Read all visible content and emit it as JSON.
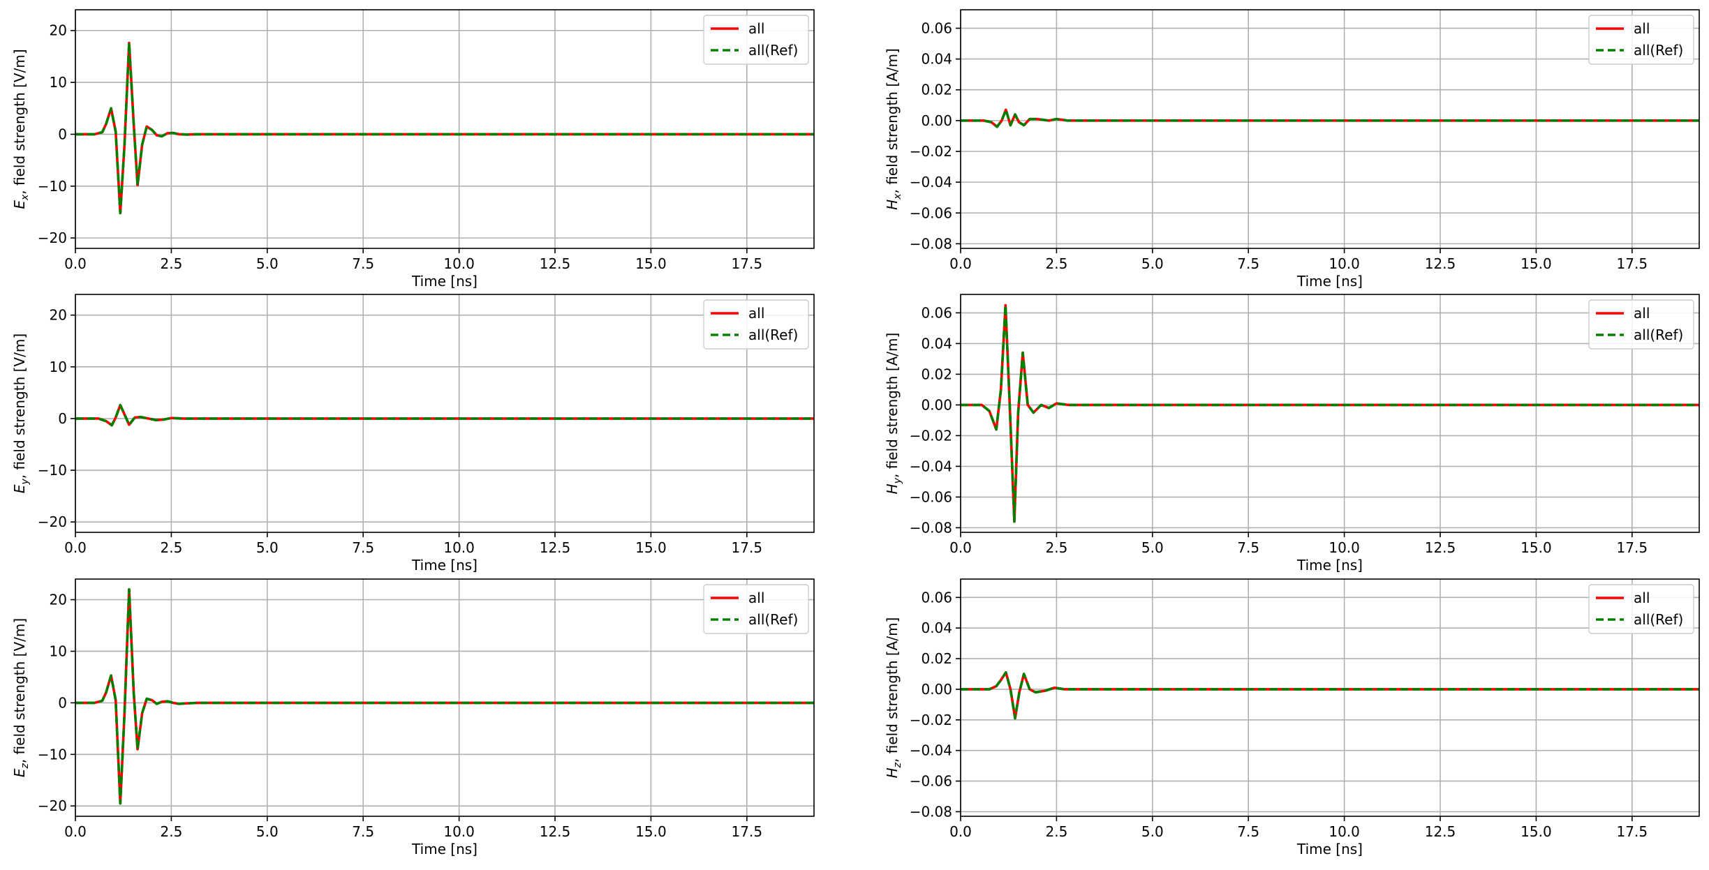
{
  "figure": {
    "layout": "3 rows x 2 columns",
    "grid": true,
    "legend_position": "top-right",
    "colors": {
      "sim": "#ff0000",
      "ref": "#007f00",
      "grid": "#b0b0b0",
      "axes": "#000000"
    }
  },
  "chart_data": [
    {
      "type": "line",
      "id": "ex",
      "title": "",
      "ylabel_main": "E",
      "ylabel_sub": "x",
      "ylabel_rest": ", field strength [V/m]",
      "xlabel": "Time [ns]",
      "xlim": [
        0,
        19.25
      ],
      "ylim": [
        -22,
        24
      ],
      "xticks": [
        0,
        2.5,
        5,
        7.5,
        10,
        12.5,
        15,
        17.5
      ],
      "xtick_labels": [
        "0.0",
        "2.5",
        "5.0",
        "7.5",
        "10.0",
        "12.5",
        "15.0",
        "17.5"
      ],
      "yticks": [
        -20,
        -10,
        0,
        10,
        20
      ],
      "ytick_labels": [
        "−20",
        "−10",
        "0",
        "10",
        "20"
      ],
      "x": [
        0,
        0.5,
        0.7,
        0.8,
        0.93,
        1.05,
        1.17,
        1.28,
        1.4,
        1.52,
        1.62,
        1.74,
        1.86,
        2.0,
        2.12,
        2.25,
        2.4,
        2.55,
        2.7,
        2.9,
        3.2,
        19.25
      ],
      "series": [
        {
          "name": "all",
          "values": [
            0,
            0,
            0.4,
            2.0,
            5.0,
            0.5,
            -15.2,
            -2.0,
            17.6,
            2.0,
            -9.8,
            -2.0,
            1.5,
            0.8,
            -0.2,
            -0.4,
            0.2,
            0.25,
            0,
            -0.05,
            0,
            0
          ]
        },
        {
          "name": "all(Ref)",
          "values": [
            0,
            0,
            0.4,
            2.0,
            5.0,
            0.5,
            -15.2,
            -2.0,
            17.6,
            2.0,
            -9.8,
            -2.0,
            1.5,
            0.8,
            -0.2,
            -0.4,
            0.2,
            0.25,
            0,
            -0.05,
            0,
            0
          ]
        }
      ]
    },
    {
      "type": "line",
      "id": "hx",
      "title": "",
      "ylabel_main": "H",
      "ylabel_sub": "x",
      "ylabel_rest": ", field strength [A/m]",
      "xlabel": "Time [ns]",
      "xlim": [
        0,
        19.25
      ],
      "ylim": [
        -0.083,
        0.072
      ],
      "xticks": [
        0,
        2.5,
        5,
        7.5,
        10,
        12.5,
        15,
        17.5
      ],
      "xtick_labels": [
        "0.0",
        "2.5",
        "5.0",
        "7.5",
        "10.0",
        "12.5",
        "15.0",
        "17.5"
      ],
      "yticks": [
        -0.08,
        -0.06,
        -0.04,
        -0.02,
        0,
        0.02,
        0.04,
        0.06
      ],
      "ytick_labels": [
        "−0.08",
        "−0.06",
        "−0.04",
        "−0.02",
        "0.00",
        "0.02",
        "0.04",
        "0.06"
      ],
      "x": [
        0,
        0.6,
        0.8,
        0.95,
        1.07,
        1.18,
        1.3,
        1.42,
        1.52,
        1.65,
        1.8,
        2.0,
        2.3,
        2.5,
        2.8,
        19.25
      ],
      "series": [
        {
          "name": "all",
          "values": [
            0,
            0,
            -0.001,
            -0.004,
            0,
            0.007,
            -0.003,
            0.004,
            -0.001,
            -0.003,
            0.001,
            0.001,
            0,
            0.001,
            0,
            0
          ]
        },
        {
          "name": "all(Ref)",
          "values": [
            0,
            0,
            -0.001,
            -0.004,
            0,
            0.007,
            -0.003,
            0.004,
            -0.001,
            -0.003,
            0.001,
            0.001,
            0,
            0.001,
            0,
            0
          ]
        }
      ]
    },
    {
      "type": "line",
      "id": "ey",
      "title": "",
      "ylabel_main": "E",
      "ylabel_sub": "y",
      "ylabel_rest": ", field strength [V/m]",
      "xlabel": "Time [ns]",
      "xlim": [
        0,
        19.25
      ],
      "ylim": [
        -22,
        24
      ],
      "xticks": [
        0,
        2.5,
        5,
        7.5,
        10,
        12.5,
        15,
        17.5
      ],
      "xtick_labels": [
        "0.0",
        "2.5",
        "5.0",
        "7.5",
        "10.0",
        "12.5",
        "15.0",
        "17.5"
      ],
      "yticks": [
        -20,
        -10,
        0,
        10,
        20
      ],
      "ytick_labels": [
        "−20",
        "−10",
        "0",
        "10",
        "20"
      ],
      "x": [
        0,
        0.6,
        0.8,
        0.95,
        1.05,
        1.17,
        1.28,
        1.4,
        1.55,
        1.7,
        1.9,
        2.1,
        2.3,
        2.5,
        2.8,
        19.25
      ],
      "series": [
        {
          "name": "all",
          "values": [
            0,
            0,
            -0.5,
            -1.3,
            0.2,
            2.6,
            0.8,
            -1.2,
            0.2,
            0.3,
            0,
            -0.3,
            -0.2,
            0.1,
            0,
            0
          ]
        },
        {
          "name": "all(Ref)",
          "values": [
            0,
            0,
            -0.5,
            -1.3,
            0.2,
            2.6,
            0.8,
            -1.2,
            0.2,
            0.3,
            0,
            -0.3,
            -0.2,
            0.1,
            0,
            0
          ]
        }
      ]
    },
    {
      "type": "line",
      "id": "hy",
      "title": "",
      "ylabel_main": "H",
      "ylabel_sub": "y",
      "ylabel_rest": ", field strength [A/m]",
      "xlabel": "Time [ns]",
      "xlim": [
        0,
        19.25
      ],
      "ylim": [
        -0.083,
        0.072
      ],
      "xticks": [
        0,
        2.5,
        5,
        7.5,
        10,
        12.5,
        15,
        17.5
      ],
      "xtick_labels": [
        "0.0",
        "2.5",
        "5.0",
        "7.5",
        "10.0",
        "12.5",
        "15.0",
        "17.5"
      ],
      "yticks": [
        -0.08,
        -0.06,
        -0.04,
        -0.02,
        0,
        0.02,
        0.04,
        0.06
      ],
      "ytick_labels": [
        "−0.08",
        "−0.06",
        "−0.04",
        "−0.02",
        "0.00",
        "0.02",
        "0.04",
        "0.06"
      ],
      "x": [
        0,
        0.55,
        0.75,
        0.93,
        1.05,
        1.17,
        1.28,
        1.4,
        1.5,
        1.62,
        1.75,
        1.9,
        2.1,
        2.3,
        2.5,
        2.8,
        19.25
      ],
      "series": [
        {
          "name": "all",
          "values": [
            0,
            0,
            -0.004,
            -0.016,
            0.01,
            0.065,
            0.0,
            -0.076,
            -0.005,
            0.034,
            0.0,
            -0.005,
            0.0,
            -0.002,
            0.001,
            0,
            0
          ]
        },
        {
          "name": "all(Ref)",
          "values": [
            0,
            0,
            -0.004,
            -0.016,
            0.01,
            0.065,
            0.0,
            -0.076,
            -0.005,
            0.034,
            0.0,
            -0.005,
            0.0,
            -0.002,
            0.001,
            0,
            0
          ]
        }
      ]
    },
    {
      "type": "line",
      "id": "ez",
      "title": "",
      "ylabel_main": "E",
      "ylabel_sub": "z",
      "ylabel_rest": ", field strength [V/m]",
      "xlabel": "Time [ns]",
      "xlim": [
        0,
        19.25
      ],
      "ylim": [
        -22,
        24
      ],
      "xticks": [
        0,
        2.5,
        5,
        7.5,
        10,
        12.5,
        15,
        17.5
      ],
      "xtick_labels": [
        "0.0",
        "2.5",
        "5.0",
        "7.5",
        "10.0",
        "12.5",
        "15.0",
        "17.5"
      ],
      "yticks": [
        -20,
        -10,
        0,
        10,
        20
      ],
      "ytick_labels": [
        "−20",
        "−10",
        "0",
        "10",
        "20"
      ],
      "x": [
        0,
        0.5,
        0.7,
        0.8,
        0.93,
        1.05,
        1.17,
        1.28,
        1.4,
        1.52,
        1.62,
        1.74,
        1.86,
        2.0,
        2.12,
        2.25,
        2.4,
        2.55,
        2.7,
        2.9,
        3.2,
        19.25
      ],
      "series": [
        {
          "name": "all",
          "values": [
            0,
            0,
            0.4,
            2.0,
            5.3,
            0.5,
            -19.5,
            -2.0,
            22.0,
            2.0,
            -9.0,
            -2.0,
            0.8,
            0.5,
            -0.2,
            0.2,
            0.3,
            0,
            -0.2,
            -0.1,
            0,
            0
          ]
        },
        {
          "name": "all(Ref)",
          "values": [
            0,
            0,
            0.4,
            2.0,
            5.3,
            0.5,
            -19.5,
            -2.0,
            22.0,
            2.0,
            -9.0,
            -2.0,
            0.8,
            0.5,
            -0.2,
            0.2,
            0.3,
            0,
            -0.2,
            -0.1,
            0,
            0
          ]
        }
      ]
    },
    {
      "type": "line",
      "id": "hz",
      "title": "",
      "ylabel_main": "H",
      "ylabel_sub": "z",
      "ylabel_rest": ", field strength [A/m]",
      "xlabel": "Time [ns]",
      "xlim": [
        0,
        19.25
      ],
      "ylim": [
        -0.083,
        0.072
      ],
      "xticks": [
        0,
        2.5,
        5,
        7.5,
        10,
        12.5,
        15,
        17.5
      ],
      "xtick_labels": [
        "0.0",
        "2.5",
        "5.0",
        "7.5",
        "10.0",
        "12.5",
        "15.0",
        "17.5"
      ],
      "yticks": [
        -0.08,
        -0.06,
        -0.04,
        -0.02,
        0,
        0.02,
        0.04,
        0.06
      ],
      "ytick_labels": [
        "−0.08",
        "−0.06",
        "−0.04",
        "−0.02",
        "0.00",
        "0.02",
        "0.04",
        "0.06"
      ],
      "x": [
        0,
        0.55,
        0.75,
        0.93,
        1.05,
        1.18,
        1.3,
        1.42,
        1.53,
        1.65,
        1.8,
        1.95,
        2.2,
        2.45,
        2.7,
        19.25
      ],
      "series": [
        {
          "name": "all",
          "values": [
            0,
            0,
            0.0,
            0.002,
            0.006,
            0.011,
            0.0,
            -0.019,
            -0.002,
            0.01,
            0.0,
            -0.002,
            -0.001,
            0.001,
            0,
            0
          ]
        },
        {
          "name": "all(Ref)",
          "values": [
            0,
            0,
            0.0,
            0.002,
            0.006,
            0.011,
            0.0,
            -0.019,
            -0.002,
            0.01,
            0.0,
            -0.002,
            -0.001,
            0.001,
            0,
            0
          ]
        }
      ]
    }
  ]
}
